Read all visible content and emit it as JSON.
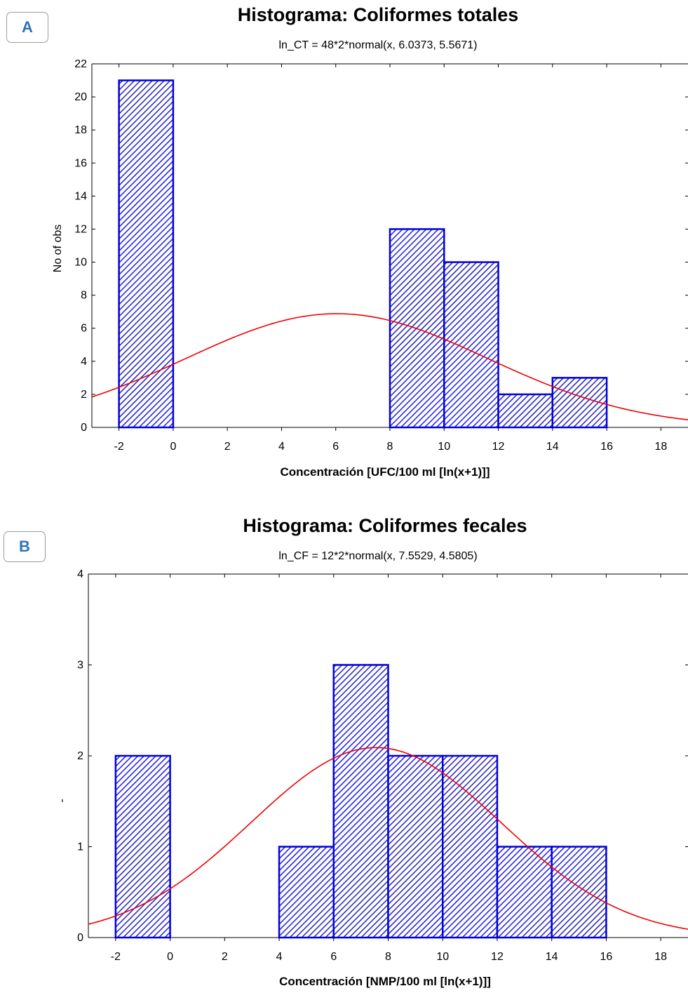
{
  "panels": [
    {
      "label": "A"
    },
    {
      "label": "B"
    }
  ],
  "chart_data": [
    {
      "type": "bar",
      "title": "Histograma: Coliformes totales",
      "subtitle": "ln_CT = 48*2*normal(x, 6.0373, 5.5671)",
      "xlabel": "Concentración [UFC/100 ml [ln(x+1)]]",
      "ylabel": "No of obs",
      "xlim": [
        -3,
        19
      ],
      "ylim": [
        0,
        22
      ],
      "xticks": [
        "-2",
        "0",
        "2",
        "4",
        "6",
        "8",
        "10",
        "12",
        "14",
        "16",
        "18"
      ],
      "yticks": [
        "0",
        "2",
        "4",
        "6",
        "8",
        "10",
        "12",
        "14",
        "16",
        "18",
        "20",
        "22"
      ],
      "bins": [
        {
          "from": -2,
          "to": 0,
          "count": 21
        },
        {
          "from": 8,
          "to": 10,
          "count": 12
        },
        {
          "from": 10,
          "to": 12,
          "count": 10
        },
        {
          "from": 12,
          "to": 14,
          "count": 2
        },
        {
          "from": 14,
          "to": 16,
          "count": 3
        }
      ],
      "fit": {
        "distribution": "normal",
        "n": 48,
        "bin_width": 2,
        "mean": 6.0373,
        "sd": 5.5671
      },
      "bar_color": "#0000dd",
      "fit_color": "#ee0000",
      "grid": false
    },
    {
      "type": "bar",
      "title": "Histograma: Coliformes fecales",
      "subtitle": "ln_CF = 12*2*normal(x, 7.5529, 4.5805)",
      "xlabel": "Concentración [NMP/100 ml [ln(x+1)]]",
      "ylabel": "-",
      "xlim": [
        -3,
        19
      ],
      "ylim": [
        0,
        4
      ],
      "xticks": [
        "-2",
        "0",
        "2",
        "4",
        "6",
        "8",
        "10",
        "12",
        "14",
        "16",
        "18"
      ],
      "yticks": [
        "0",
        "1",
        "2",
        "3",
        "4"
      ],
      "bins": [
        {
          "from": -2,
          "to": 0,
          "count": 2
        },
        {
          "from": 4,
          "to": 6,
          "count": 1
        },
        {
          "from": 6,
          "to": 8,
          "count": 3
        },
        {
          "from": 8,
          "to": 10,
          "count": 2
        },
        {
          "from": 10,
          "to": 12,
          "count": 2
        },
        {
          "from": 12,
          "to": 14,
          "count": 1
        },
        {
          "from": 14,
          "to": 16,
          "count": 1
        }
      ],
      "fit": {
        "distribution": "normal",
        "n": 12,
        "bin_width": 2,
        "mean": 7.5529,
        "sd": 4.5805
      },
      "bar_color": "#0000dd",
      "fit_color": "#ee0000",
      "grid": false
    }
  ]
}
